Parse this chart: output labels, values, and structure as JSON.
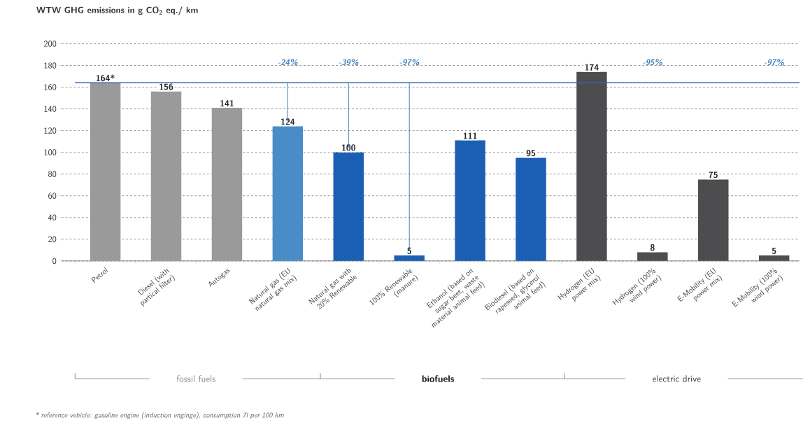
{
  "chart_data": {
    "type": "bar",
    "title": "WTW GHG emissions in g CO$_{2}$ eq./ km",
    "categories": [
      "Petrol",
      "Diesel (with partical filter)",
      "Autogas",
      "Natural gas (EU natural gas mix)",
      "Natural gas with 20% Renewable",
      "100% Renewable (manure)",
      "Ethanol (based on sugar beet, waste material animal feed)",
      "Biodiesel (based on rapeseed, glycerol animal feed)",
      "Hydrogen (EU power mix)",
      "Hydrogen (100% wind power)",
      "E-Mobility (EU power mix)",
      "E-Mobility (100% wind power)"
    ],
    "values": [
      164,
      156,
      141,
      124,
      100,
      5,
      111,
      95,
      174,
      8,
      75,
      5
    ],
    "value_labels": [
      "164*",
      "156",
      "141",
      "124",
      "100",
      "5",
      "111",
      "95",
      "174",
      "8",
      "75",
      "5"
    ],
    "colors": [
      "#9a9a9a",
      "#9a9a9a",
      "#9a9a9a",
      "#4a8cc8",
      "#1a5fb4",
      "#1a5fb4",
      "#1a5fb4",
      "#1a5fb4",
      "#4d4d50",
      "#4d4d50",
      "#4d4d50",
      "#4d4d50"
    ],
    "ylim": [
      0,
      200
    ],
    "yticks": [
      0,
      20,
      40,
      60,
      80,
      100,
      120,
      140,
      160,
      180,
      200
    ],
    "grid": "y",
    "ref_lines": [
      {
        "axis": "y",
        "value": 164,
        "color": "#2b6cb0"
      }
    ],
    "annotations": [
      "-24%",
      "-39%",
      "-97%",
      "-95%",
      "-97%",
      "fossil fuels",
      "biofuels",
      "electric drive",
      "* reference vehicle: gasoline engine (induction enginge), consumption 7l per 100 km"
    ]
  }
}
